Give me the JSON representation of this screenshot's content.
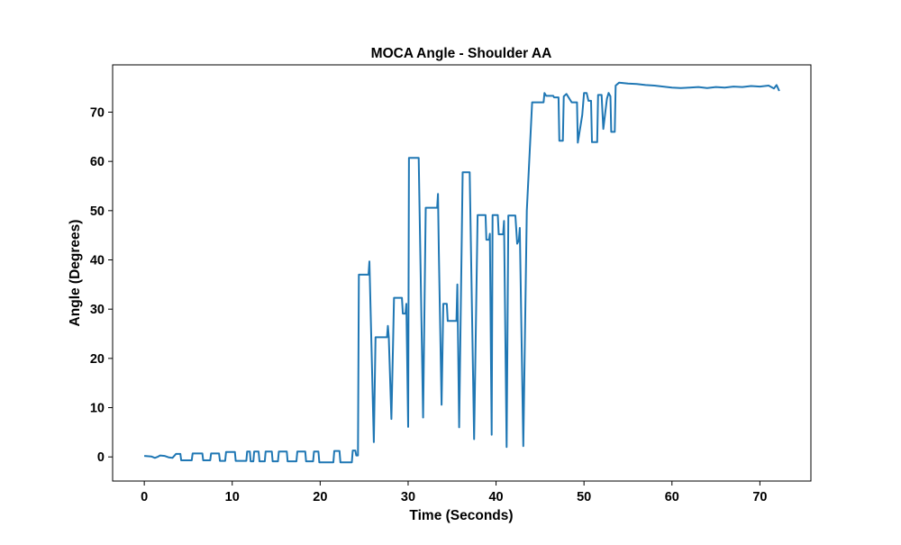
{
  "chart_data": {
    "type": "line",
    "title": "MOCA Angle - Shoulder AA",
    "xlabel": "Time (Seconds)",
    "ylabel": "Angle (Degrees)",
    "xlim": [
      -3.6,
      75.8
    ],
    "ylim": [
      -4.9,
      79.6
    ],
    "xticks": [
      0,
      10,
      20,
      30,
      40,
      50,
      60,
      70
    ],
    "yticks": [
      0,
      10,
      20,
      30,
      40,
      50,
      60,
      70
    ],
    "grid": false,
    "colors": {
      "line": "#1f77b4",
      "axes": "#000000",
      "background": "#ffffff"
    },
    "series": [
      {
        "points": [
          [
            0,
            0.2
          ],
          [
            0.8,
            0.1
          ],
          [
            1.2,
            -0.2
          ],
          [
            1.5,
            0.0
          ],
          [
            1.8,
            0.3
          ],
          [
            2.3,
            0.2
          ],
          [
            2.8,
            -0.1
          ],
          [
            3.2,
            -0.2
          ],
          [
            3.6,
            0.6
          ],
          [
            4.1,
            0.6
          ],
          [
            4.2,
            -0.7
          ],
          [
            5.4,
            -0.7
          ],
          [
            5.5,
            0.7
          ],
          [
            6.6,
            0.7
          ],
          [
            6.7,
            -0.7
          ],
          [
            7.5,
            -0.7
          ],
          [
            7.6,
            0.7
          ],
          [
            8.5,
            0.7
          ],
          [
            8.6,
            -0.8
          ],
          [
            9.2,
            -0.8
          ],
          [
            9.3,
            1.0
          ],
          [
            10.3,
            1.0
          ],
          [
            10.4,
            -0.8
          ],
          [
            11.6,
            -0.8
          ],
          [
            11.7,
            1.1
          ],
          [
            12.0,
            1.1
          ],
          [
            12.1,
            -0.9
          ],
          [
            12.4,
            -0.9
          ],
          [
            12.5,
            1.1
          ],
          [
            13.0,
            1.1
          ],
          [
            13.1,
            -0.9
          ],
          [
            13.7,
            -0.9
          ],
          [
            13.8,
            1.1
          ],
          [
            14.5,
            1.1
          ],
          [
            14.6,
            -0.9
          ],
          [
            15.2,
            -0.9
          ],
          [
            15.3,
            1.1
          ],
          [
            16.2,
            1.1
          ],
          [
            16.3,
            -0.9
          ],
          [
            17.3,
            -0.9
          ],
          [
            17.4,
            1.1
          ],
          [
            18.3,
            1.1
          ],
          [
            18.4,
            -0.9
          ],
          [
            19.2,
            -0.9
          ],
          [
            19.3,
            1.1
          ],
          [
            19.8,
            1.1
          ],
          [
            19.9,
            -1.1
          ],
          [
            21.5,
            -1.1
          ],
          [
            21.6,
            1.2
          ],
          [
            22.2,
            1.2
          ],
          [
            22.3,
            -1.1
          ],
          [
            23.6,
            -1.1
          ],
          [
            23.7,
            1.3
          ],
          [
            24.0,
            1.3
          ],
          [
            24.1,
            0.3
          ],
          [
            24.3,
            0.3
          ],
          [
            24.4,
            37.0
          ],
          [
            25.5,
            37.0
          ],
          [
            25.6,
            39.7
          ],
          [
            26.1,
            3.0
          ],
          [
            26.3,
            24.3
          ],
          [
            27.6,
            24.3
          ],
          [
            27.7,
            26.6
          ],
          [
            27.8,
            24.3
          ],
          [
            28.1,
            7.7
          ],
          [
            28.3,
            24.3
          ],
          [
            28.4,
            32.3
          ],
          [
            29.3,
            32.3
          ],
          [
            29.4,
            29.1
          ],
          [
            29.7,
            29.1
          ],
          [
            29.8,
            31.1
          ],
          [
            30.0,
            6.1
          ],
          [
            30.1,
            60.7
          ],
          [
            31.2,
            60.7
          ],
          [
            31.7,
            8.0
          ],
          [
            32.0,
            50.6
          ],
          [
            33.3,
            50.6
          ],
          [
            33.4,
            53.4
          ],
          [
            33.5,
            41.2
          ],
          [
            33.8,
            10.6
          ],
          [
            34.0,
            31.1
          ],
          [
            34.4,
            31.1
          ],
          [
            34.5,
            27.6
          ],
          [
            35.5,
            27.6
          ],
          [
            35.6,
            35.0
          ],
          [
            35.8,
            6.0
          ],
          [
            36.2,
            57.8
          ],
          [
            37.0,
            57.8
          ],
          [
            37.5,
            3.6
          ],
          [
            37.9,
            49.1
          ],
          [
            38.8,
            49.1
          ],
          [
            38.9,
            44.1
          ],
          [
            39.2,
            44.1
          ],
          [
            39.3,
            45.3
          ],
          [
            39.4,
            24.1
          ],
          [
            39.5,
            4.5
          ],
          [
            39.6,
            49.1
          ],
          [
            40.2,
            49.1
          ],
          [
            40.3,
            45.2
          ],
          [
            40.8,
            45.2
          ],
          [
            40.9,
            47.9
          ],
          [
            41.2,
            2.0
          ],
          [
            41.4,
            49.0
          ],
          [
            42.2,
            49.0
          ],
          [
            42.4,
            43.3
          ],
          [
            42.6,
            44.0
          ],
          [
            42.7,
            46.5
          ],
          [
            43.1,
            2.2
          ],
          [
            43.5,
            50.0
          ],
          [
            44.1,
            72.0
          ],
          [
            45.4,
            72.0
          ],
          [
            45.5,
            73.9
          ],
          [
            45.7,
            73.3
          ],
          [
            46.5,
            73.3
          ],
          [
            46.6,
            73.0
          ],
          [
            47.1,
            73.0
          ],
          [
            47.2,
            64.2
          ],
          [
            47.6,
            64.2
          ],
          [
            47.7,
            73.2
          ],
          [
            48.0,
            73.7
          ],
          [
            48.6,
            72.0
          ],
          [
            49.2,
            72.0
          ],
          [
            49.3,
            63.8
          ],
          [
            49.8,
            69.4
          ],
          [
            50.0,
            73.9
          ],
          [
            50.3,
            73.9
          ],
          [
            50.5,
            72.3
          ],
          [
            50.8,
            72.3
          ],
          [
            50.9,
            63.9
          ],
          [
            51.5,
            63.9
          ],
          [
            51.6,
            73.5
          ],
          [
            52.0,
            73.5
          ],
          [
            52.2,
            66.6
          ],
          [
            52.6,
            72.7
          ],
          [
            52.8,
            73.9
          ],
          [
            53.0,
            73.2
          ],
          [
            53.1,
            66.0
          ],
          [
            53.5,
            66.0
          ],
          [
            53.6,
            75.4
          ],
          [
            54.0,
            76.0
          ],
          [
            55.0,
            75.8
          ],
          [
            56.0,
            75.7
          ],
          [
            57.0,
            75.5
          ],
          [
            58.0,
            75.4
          ],
          [
            59.0,
            75.2
          ],
          [
            60.0,
            75.0
          ],
          [
            61.0,
            74.9
          ],
          [
            62.0,
            75.0
          ],
          [
            63.0,
            75.1
          ],
          [
            64.0,
            74.9
          ],
          [
            65.0,
            75.1
          ],
          [
            66.0,
            75.0
          ],
          [
            67.0,
            75.2
          ],
          [
            68.0,
            75.1
          ],
          [
            69.0,
            75.3
          ],
          [
            70.0,
            75.2
          ],
          [
            71.0,
            75.4
          ],
          [
            71.6,
            74.8
          ],
          [
            71.9,
            75.5
          ],
          [
            72.2,
            74.3
          ]
        ]
      }
    ]
  }
}
